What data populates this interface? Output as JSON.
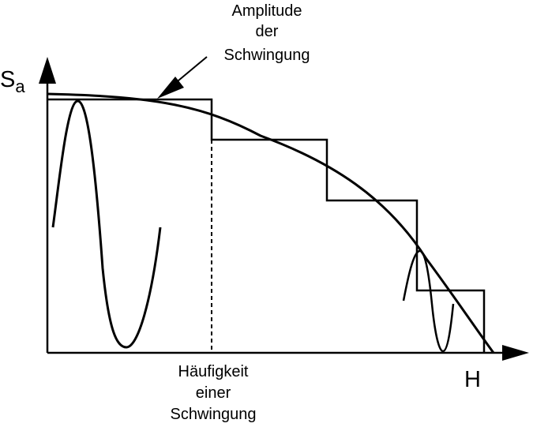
{
  "axes": {
    "y_symbol": "S",
    "y_subscript": "a",
    "x_symbol": "H"
  },
  "annotations": {
    "amplitude": [
      "Amplitude",
      "der",
      "Schwingung"
    ],
    "frequency": [
      "Häufigkeit",
      "einer",
      "Schwingung"
    ]
  },
  "colors": {
    "stroke": "#000000",
    "background": "#ffffff"
  }
}
